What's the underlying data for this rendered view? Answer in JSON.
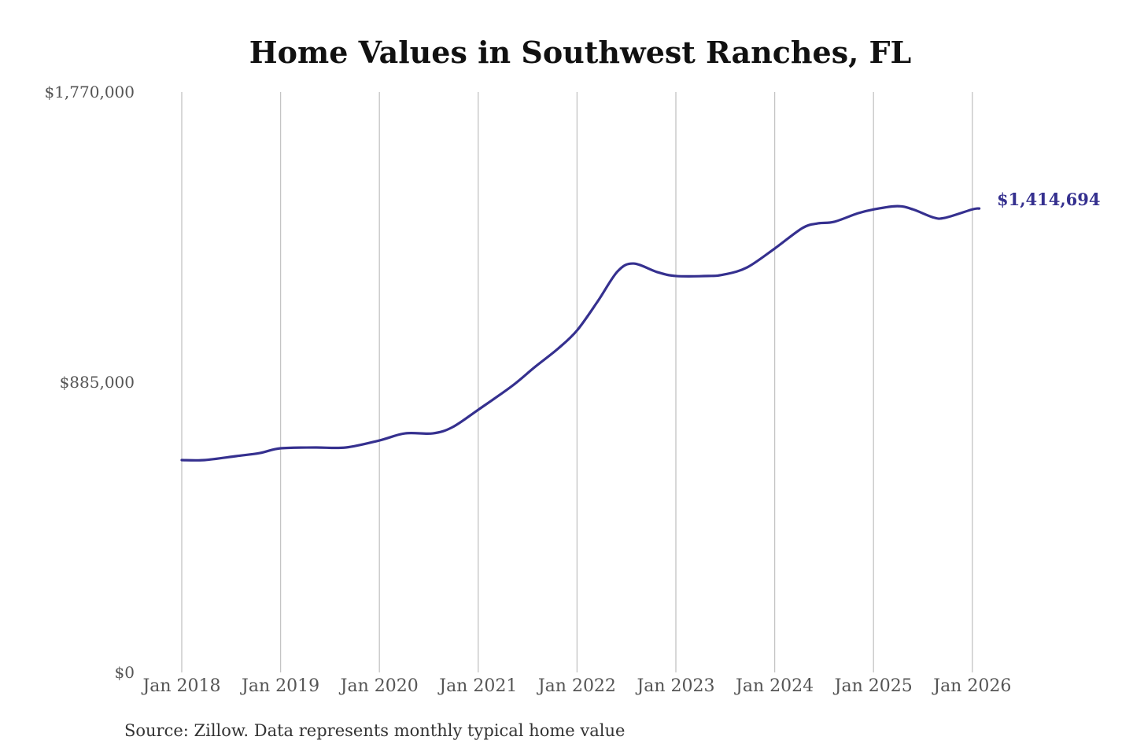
{
  "chart_data": {
    "type": "line",
    "title": "Home Values in Southwest Ranches, FL",
    "xlabel": "",
    "ylabel": "",
    "ylim": [
      0,
      1770000
    ],
    "xlim": [
      2018,
      2026.07
    ],
    "yticks": [
      {
        "value": 0,
        "label": "$0"
      },
      {
        "value": 885000,
        "label": "$885,000"
      },
      {
        "value": 1770000,
        "label": "$1,770,000"
      }
    ],
    "xticks": [
      {
        "value": 2018,
        "label": "Jan 2018"
      },
      {
        "value": 2019,
        "label": "Jan 2019"
      },
      {
        "value": 2020,
        "label": "Jan 2020"
      },
      {
        "value": 2021,
        "label": "Jan 2021"
      },
      {
        "value": 2022,
        "label": "Jan 2022"
      },
      {
        "value": 2023,
        "label": "Jan 2023"
      },
      {
        "value": 2024,
        "label": "Jan 2024"
      },
      {
        "value": 2025,
        "label": "Jan 2025"
      },
      {
        "value": 2026,
        "label": "Jan 2026"
      }
    ],
    "grid": "vertical",
    "series": [
      {
        "name": "Typical home value",
        "color": "#35308f",
        "x": [
          2018.0,
          2018.23,
          2018.55,
          2018.79,
          2019.0,
          2019.35,
          2019.66,
          2020.0,
          2020.26,
          2020.54,
          2020.74,
          2021.0,
          2021.34,
          2021.57,
          2021.81,
          2022.0,
          2022.21,
          2022.41,
          2022.57,
          2022.81,
          2023.0,
          2023.33,
          2023.49,
          2023.72,
          2024.0,
          2024.28,
          2024.44,
          2024.6,
          2024.84,
          2025.0,
          2025.24,
          2025.4,
          2025.6,
          2025.72,
          2026.0,
          2026.07
        ],
        "values": [
          647600,
          647600,
          659600,
          669000,
          683500,
          686000,
          686000,
          707500,
          729000,
          729000,
          748000,
          801000,
          873000,
          930600,
          988000,
          1043000,
          1132000,
          1223000,
          1247000,
          1221000,
          1209000,
          1209000,
          1213600,
          1235000,
          1292700,
          1355000,
          1369500,
          1374000,
          1400000,
          1412000,
          1422000,
          1412000,
          1388000,
          1386000,
          1412000,
          1414694
        ]
      }
    ],
    "end_label": "$1,414,694",
    "source": "Source: Zillow. Data represents monthly typical home value"
  }
}
